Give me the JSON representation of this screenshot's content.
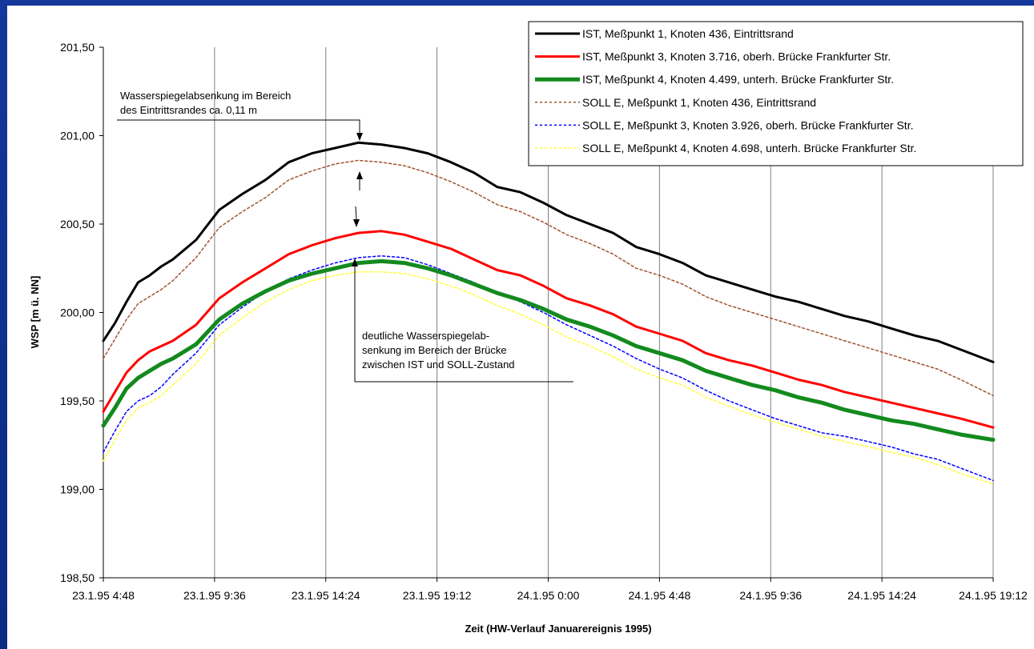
{
  "chart_data": {
    "type": "line",
    "title": "",
    "xlabel": "Zeit (HW-Verlauf Januarereignis 1995)",
    "ylabel": "WSP [m ü. NN]",
    "ylim": [
      198.5,
      201.5
    ],
    "xlim_hours": [
      0,
      38.4
    ],
    "grid": "vertical",
    "legend_position": "top-right",
    "y_ticks": [
      "198,50",
      "199,00",
      "199,50",
      "200,00",
      "200,50",
      "201,00",
      "201,50"
    ],
    "x_ticks": [
      "23.1.95 4:48",
      "23.1.95 9:36",
      "23.1.95 14:24",
      "23.1.95 19:12",
      "24.1.95 0:00",
      "24.1.95 4:48",
      "24.1.95 9:36",
      "24.1.95 14:24",
      "24.1.95 19:12"
    ],
    "series": [
      {
        "name": "IST, Meßpunkt 1,  Knoten 436,  Eintrittsrand",
        "color": "#000000",
        "width": 3,
        "dash": "",
        "hours": [
          0,
          0.5,
          1,
          1.5,
          2,
          2.5,
          3,
          4,
          5,
          6,
          7,
          8,
          9,
          10,
          11,
          12,
          13,
          14,
          15,
          16,
          17,
          18,
          19,
          20,
          21,
          22,
          23,
          24,
          25,
          26,
          27,
          28,
          29,
          30,
          31,
          32,
          33,
          34,
          35,
          36,
          37,
          38.4
        ],
        "values": [
          199.84,
          199.94,
          200.06,
          200.17,
          200.21,
          200.26,
          200.3,
          200.41,
          200.58,
          200.67,
          200.75,
          200.85,
          200.9,
          200.93,
          200.96,
          200.95,
          200.93,
          200.9,
          200.85,
          200.79,
          200.71,
          200.68,
          200.62,
          200.55,
          200.5,
          200.45,
          200.37,
          200.33,
          200.28,
          200.21,
          200.17,
          200.13,
          200.09,
          200.06,
          200.02,
          199.98,
          199.95,
          199.91,
          199.87,
          199.84,
          199.79,
          199.72
        ]
      },
      {
        "name": "IST, Meßpunkt 3,  Knoten 3.716,  oberh. Brücke Frankfurter Str.",
        "color": "#ff0000",
        "width": 3,
        "dash": "",
        "hours": [
          0,
          0.5,
          1,
          1.5,
          2,
          2.5,
          3,
          4,
          5,
          6,
          7,
          8,
          9,
          10,
          11,
          12,
          13,
          14,
          15,
          16,
          17,
          18,
          19,
          20,
          21,
          22,
          23,
          24,
          25,
          26,
          27,
          28,
          29,
          30,
          31,
          32,
          33,
          34,
          35,
          36,
          37,
          38.4
        ],
        "values": [
          199.44,
          199.55,
          199.66,
          199.73,
          199.78,
          199.81,
          199.84,
          199.93,
          200.08,
          200.17,
          200.25,
          200.33,
          200.38,
          200.42,
          200.45,
          200.46,
          200.44,
          200.4,
          200.36,
          200.3,
          200.24,
          200.21,
          200.15,
          200.08,
          200.04,
          199.99,
          199.92,
          199.88,
          199.84,
          199.77,
          199.73,
          199.7,
          199.66,
          199.62,
          199.59,
          199.55,
          199.52,
          199.49,
          199.46,
          199.43,
          199.4,
          199.35
        ]
      },
      {
        "name": "IST, Meßpunkt 4,  Knoten 4.499,  unterh. Brücke Frankfurter Str.",
        "color": "#138a1e",
        "width": 5,
        "dash": "",
        "hours": [
          0,
          0.5,
          1,
          1.5,
          2,
          2.5,
          3,
          4,
          5,
          6,
          7,
          8,
          9,
          10,
          11,
          12,
          13,
          14,
          15,
          16,
          17,
          18,
          19,
          20,
          21,
          22,
          23,
          24,
          25,
          26,
          27,
          28,
          29,
          30,
          31,
          32,
          33,
          34,
          35,
          36,
          37,
          38.4
        ],
        "values": [
          199.36,
          199.46,
          199.57,
          199.63,
          199.67,
          199.71,
          199.74,
          199.82,
          199.96,
          200.05,
          200.12,
          200.18,
          200.22,
          200.25,
          200.28,
          200.29,
          200.28,
          200.25,
          200.21,
          200.16,
          200.11,
          200.07,
          200.02,
          199.96,
          199.92,
          199.87,
          199.81,
          199.77,
          199.73,
          199.67,
          199.63,
          199.59,
          199.56,
          199.52,
          199.49,
          199.45,
          199.42,
          199.39,
          199.37,
          199.34,
          199.31,
          199.28
        ]
      },
      {
        "name": "SOLL E, Meßpunkt 1,  Knoten 436,  Eintrittsrand",
        "color": "#a0522d",
        "width": 1.5,
        "dash": "3,3",
        "hours": [
          0,
          0.5,
          1,
          1.5,
          2,
          2.5,
          3,
          4,
          5,
          6,
          7,
          8,
          9,
          10,
          11,
          12,
          13,
          14,
          15,
          16,
          17,
          18,
          19,
          20,
          21,
          22,
          23,
          24,
          25,
          26,
          27,
          28,
          29,
          30,
          31,
          32,
          33,
          34,
          35,
          36,
          37,
          38.4
        ],
        "values": [
          199.74,
          199.85,
          199.96,
          200.05,
          200.09,
          200.13,
          200.18,
          200.31,
          200.48,
          200.57,
          200.65,
          200.75,
          200.8,
          200.84,
          200.86,
          200.85,
          200.83,
          200.79,
          200.74,
          200.68,
          200.61,
          200.57,
          200.51,
          200.44,
          200.39,
          200.33,
          200.25,
          200.21,
          200.16,
          200.09,
          200.04,
          200.0,
          199.96,
          199.92,
          199.88,
          199.84,
          199.8,
          199.76,
          199.72,
          199.68,
          199.62,
          199.53
        ]
      },
      {
        "name": "SOLL E, Meßpunkt 3,  Knoten 3.926,  oberh. Brücke Frankfurter Str.",
        "color": "#0000ff",
        "width": 1.5,
        "dash": "3,3",
        "hours": [
          0,
          0.5,
          1,
          1.5,
          2,
          2.5,
          3,
          4,
          5,
          6,
          7,
          8,
          9,
          10,
          11,
          12,
          13,
          14,
          15,
          16,
          17,
          18,
          19,
          20,
          21,
          22,
          23,
          24,
          25,
          26,
          27,
          28,
          29,
          30,
          31,
          32,
          33,
          34,
          35,
          36,
          37,
          38.4
        ],
        "values": [
          199.21,
          199.33,
          199.44,
          199.5,
          199.53,
          199.58,
          199.65,
          199.77,
          199.93,
          200.03,
          200.12,
          200.19,
          200.24,
          200.28,
          200.31,
          200.32,
          200.31,
          200.27,
          200.22,
          200.17,
          200.11,
          200.06,
          200.0,
          199.93,
          199.87,
          199.81,
          199.74,
          199.68,
          199.63,
          199.56,
          199.5,
          199.45,
          199.4,
          199.36,
          199.32,
          199.3,
          199.27,
          199.24,
          199.2,
          199.17,
          199.12,
          199.05
        ]
      },
      {
        "name": "SOLL E, Meßpunkt 4,  Knoten 4.698,  unterh. Brücke Frankfurter Str.",
        "color": "#ffff33",
        "width": 1.5,
        "dash": "3,3",
        "hours": [
          0,
          0.5,
          1,
          1.5,
          2,
          2.5,
          3,
          4,
          5,
          6,
          7,
          8,
          9,
          10,
          11,
          12,
          13,
          14,
          15,
          16,
          17,
          18,
          19,
          20,
          21,
          22,
          23,
          24,
          25,
          26,
          27,
          28,
          29,
          30,
          31,
          32,
          33,
          34,
          35,
          36,
          37,
          38.4
        ],
        "values": [
          199.16,
          199.28,
          199.39,
          199.46,
          199.49,
          199.53,
          199.59,
          199.71,
          199.87,
          199.97,
          200.06,
          200.13,
          200.18,
          200.21,
          200.23,
          200.23,
          200.22,
          200.19,
          200.15,
          200.1,
          200.04,
          199.99,
          199.93,
          199.86,
          199.81,
          199.75,
          199.68,
          199.63,
          199.59,
          199.52,
          199.47,
          199.42,
          199.38,
          199.34,
          199.3,
          199.27,
          199.24,
          199.21,
          199.18,
          199.14,
          199.09,
          199.03
        ]
      }
    ],
    "annotations": [
      {
        "lines": [
          "Wasserspiegelabsenkung im Bereich",
          "des Eintrittsrandes ca. 0,11 m"
        ]
      },
      {
        "lines": [
          "deutliche Wasserspiegelab-",
          "senkung im Bereich der Brücke",
          "zwischen IST und SOLL-Zustand"
        ]
      }
    ]
  }
}
